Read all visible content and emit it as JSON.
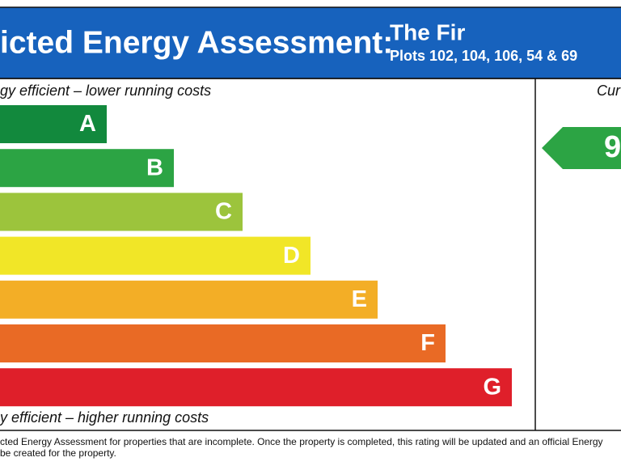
{
  "header": {
    "title": "icted Energy Assessment:",
    "name": "The Fir",
    "plots": "Plots 102, 104, 106, 54 & 69"
  },
  "scale": {
    "top_note": "gy efficient – lower running costs",
    "bottom_note": "y efficient – higher running costs",
    "bands": [
      {
        "letter": "A",
        "color": "#12893d"
      },
      {
        "letter": "B",
        "color": "#2ca444"
      },
      {
        "letter": "C",
        "color": "#9cc43c"
      },
      {
        "letter": "D",
        "color": "#f1e627"
      },
      {
        "letter": "E",
        "color": "#f3ae26"
      },
      {
        "letter": "F",
        "color": "#e96a25"
      },
      {
        "letter": "G",
        "color": "#df1f2a"
      }
    ]
  },
  "current": {
    "heading": "Cur",
    "rating": "9",
    "color": "#2ca444"
  },
  "footer": {
    "lines": [
      "cted Energy Assessment for properties that are incomplete. Once the property is completed, this rating will be updated and an official Energy",
      "be created for the property."
    ]
  }
}
